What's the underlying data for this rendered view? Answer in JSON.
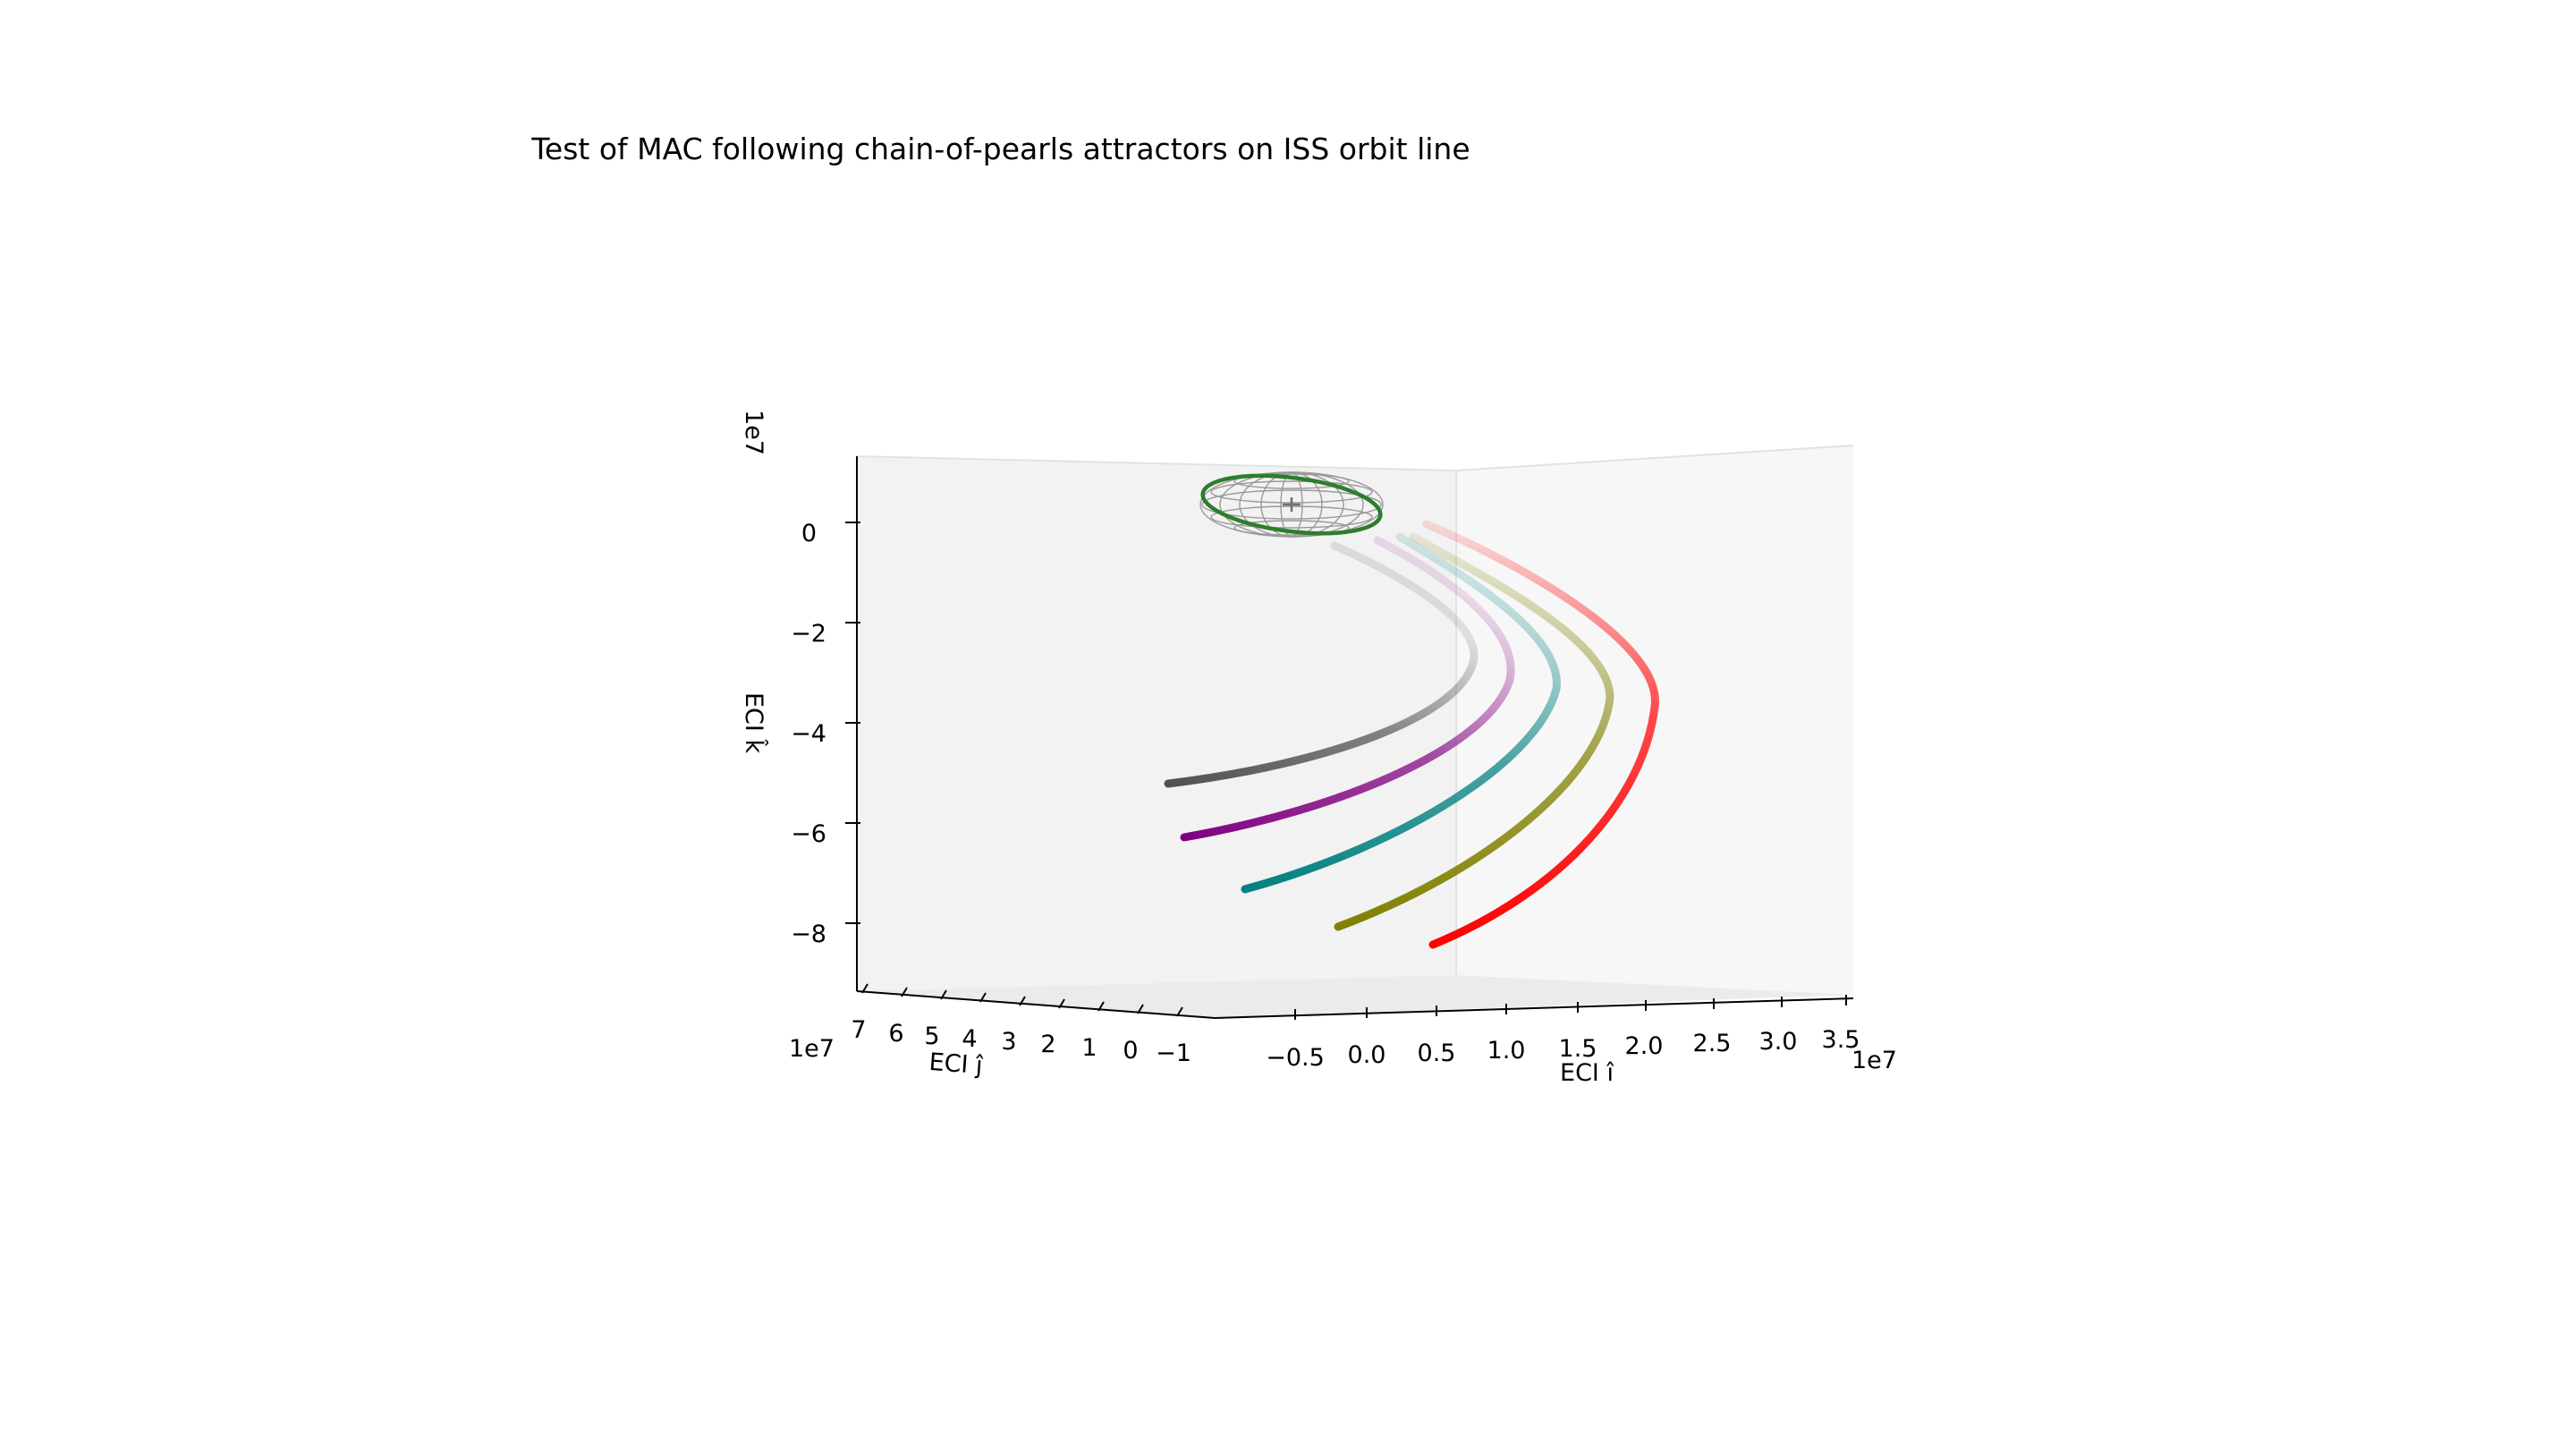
{
  "chart_data": {
    "type": "line",
    "projection": "3d",
    "title": "Test of MAC following chain-of-pearls attractors on ISS orbit line",
    "xlabel": "ECI î",
    "ylabel": "ECI ĵ",
    "zlabel": "ECI k̂",
    "x_offset": "1e7",
    "y_offset": "1e7",
    "z_offset": "1e7",
    "x_ticks": [
      "−0.5",
      "0.0",
      "0.5",
      "1.0",
      "1.5",
      "2.0",
      "2.5",
      "3.0",
      "3.5"
    ],
    "y_ticks": [
      "7",
      "6",
      "5",
      "4",
      "3",
      "2",
      "1",
      "0",
      "−1"
    ],
    "z_ticks": [
      "0",
      "−2",
      "−4",
      "−6",
      "−8"
    ],
    "grid": false,
    "legend": "none",
    "earth": {
      "wireframe_color": "#9a9a9a",
      "orbit_color": "#2e7d2e"
    },
    "series": [
      {
        "color": "#505050",
        "end_xz": [
          -0.85,
          -5.3
        ],
        "knee_xz": [
          0.45,
          -2.6
        ]
      },
      {
        "color": "#800080",
        "end_xz": [
          -0.7,
          -6.3
        ],
        "knee_xz": [
          0.7,
          -2.85
        ]
      },
      {
        "color": "#008080",
        "end_xz": [
          -0.3,
          -7.3
        ],
        "knee_xz": [
          1.05,
          -3.05
        ]
      },
      {
        "color": "#808000",
        "end_xz": [
          0.3,
          -8.1
        ],
        "knee_xz": [
          1.4,
          -3.35
        ]
      },
      {
        "color": "#ff0000",
        "end_xz": [
          1.0,
          -8.4
        ],
        "knee_xz": [
          1.7,
          -3.5
        ]
      }
    ]
  }
}
